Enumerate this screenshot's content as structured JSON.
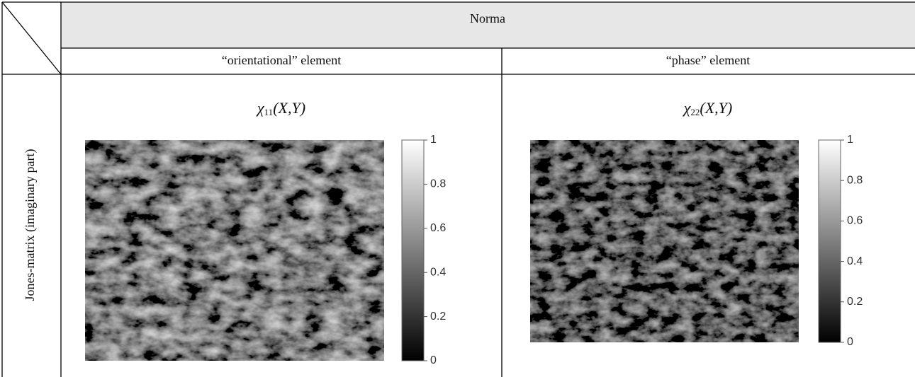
{
  "header": {
    "title": "Norma",
    "columns": [
      "“orientational” element",
      "“phase” element"
    ]
  },
  "row_label": "Jones-matrix (imaginary part)",
  "cells": [
    {
      "symbol": "χ",
      "subscript": "11",
      "args": "(X,Y)",
      "colorbar_ticks": [
        1,
        0.8,
        0.6,
        0.4,
        0.2,
        0
      ]
    },
    {
      "symbol": "χ",
      "subscript": "22",
      "args": "(X,Y)",
      "colorbar_ticks": [
        1,
        0.8,
        0.6,
        0.4,
        0.2,
        0
      ]
    }
  ]
}
